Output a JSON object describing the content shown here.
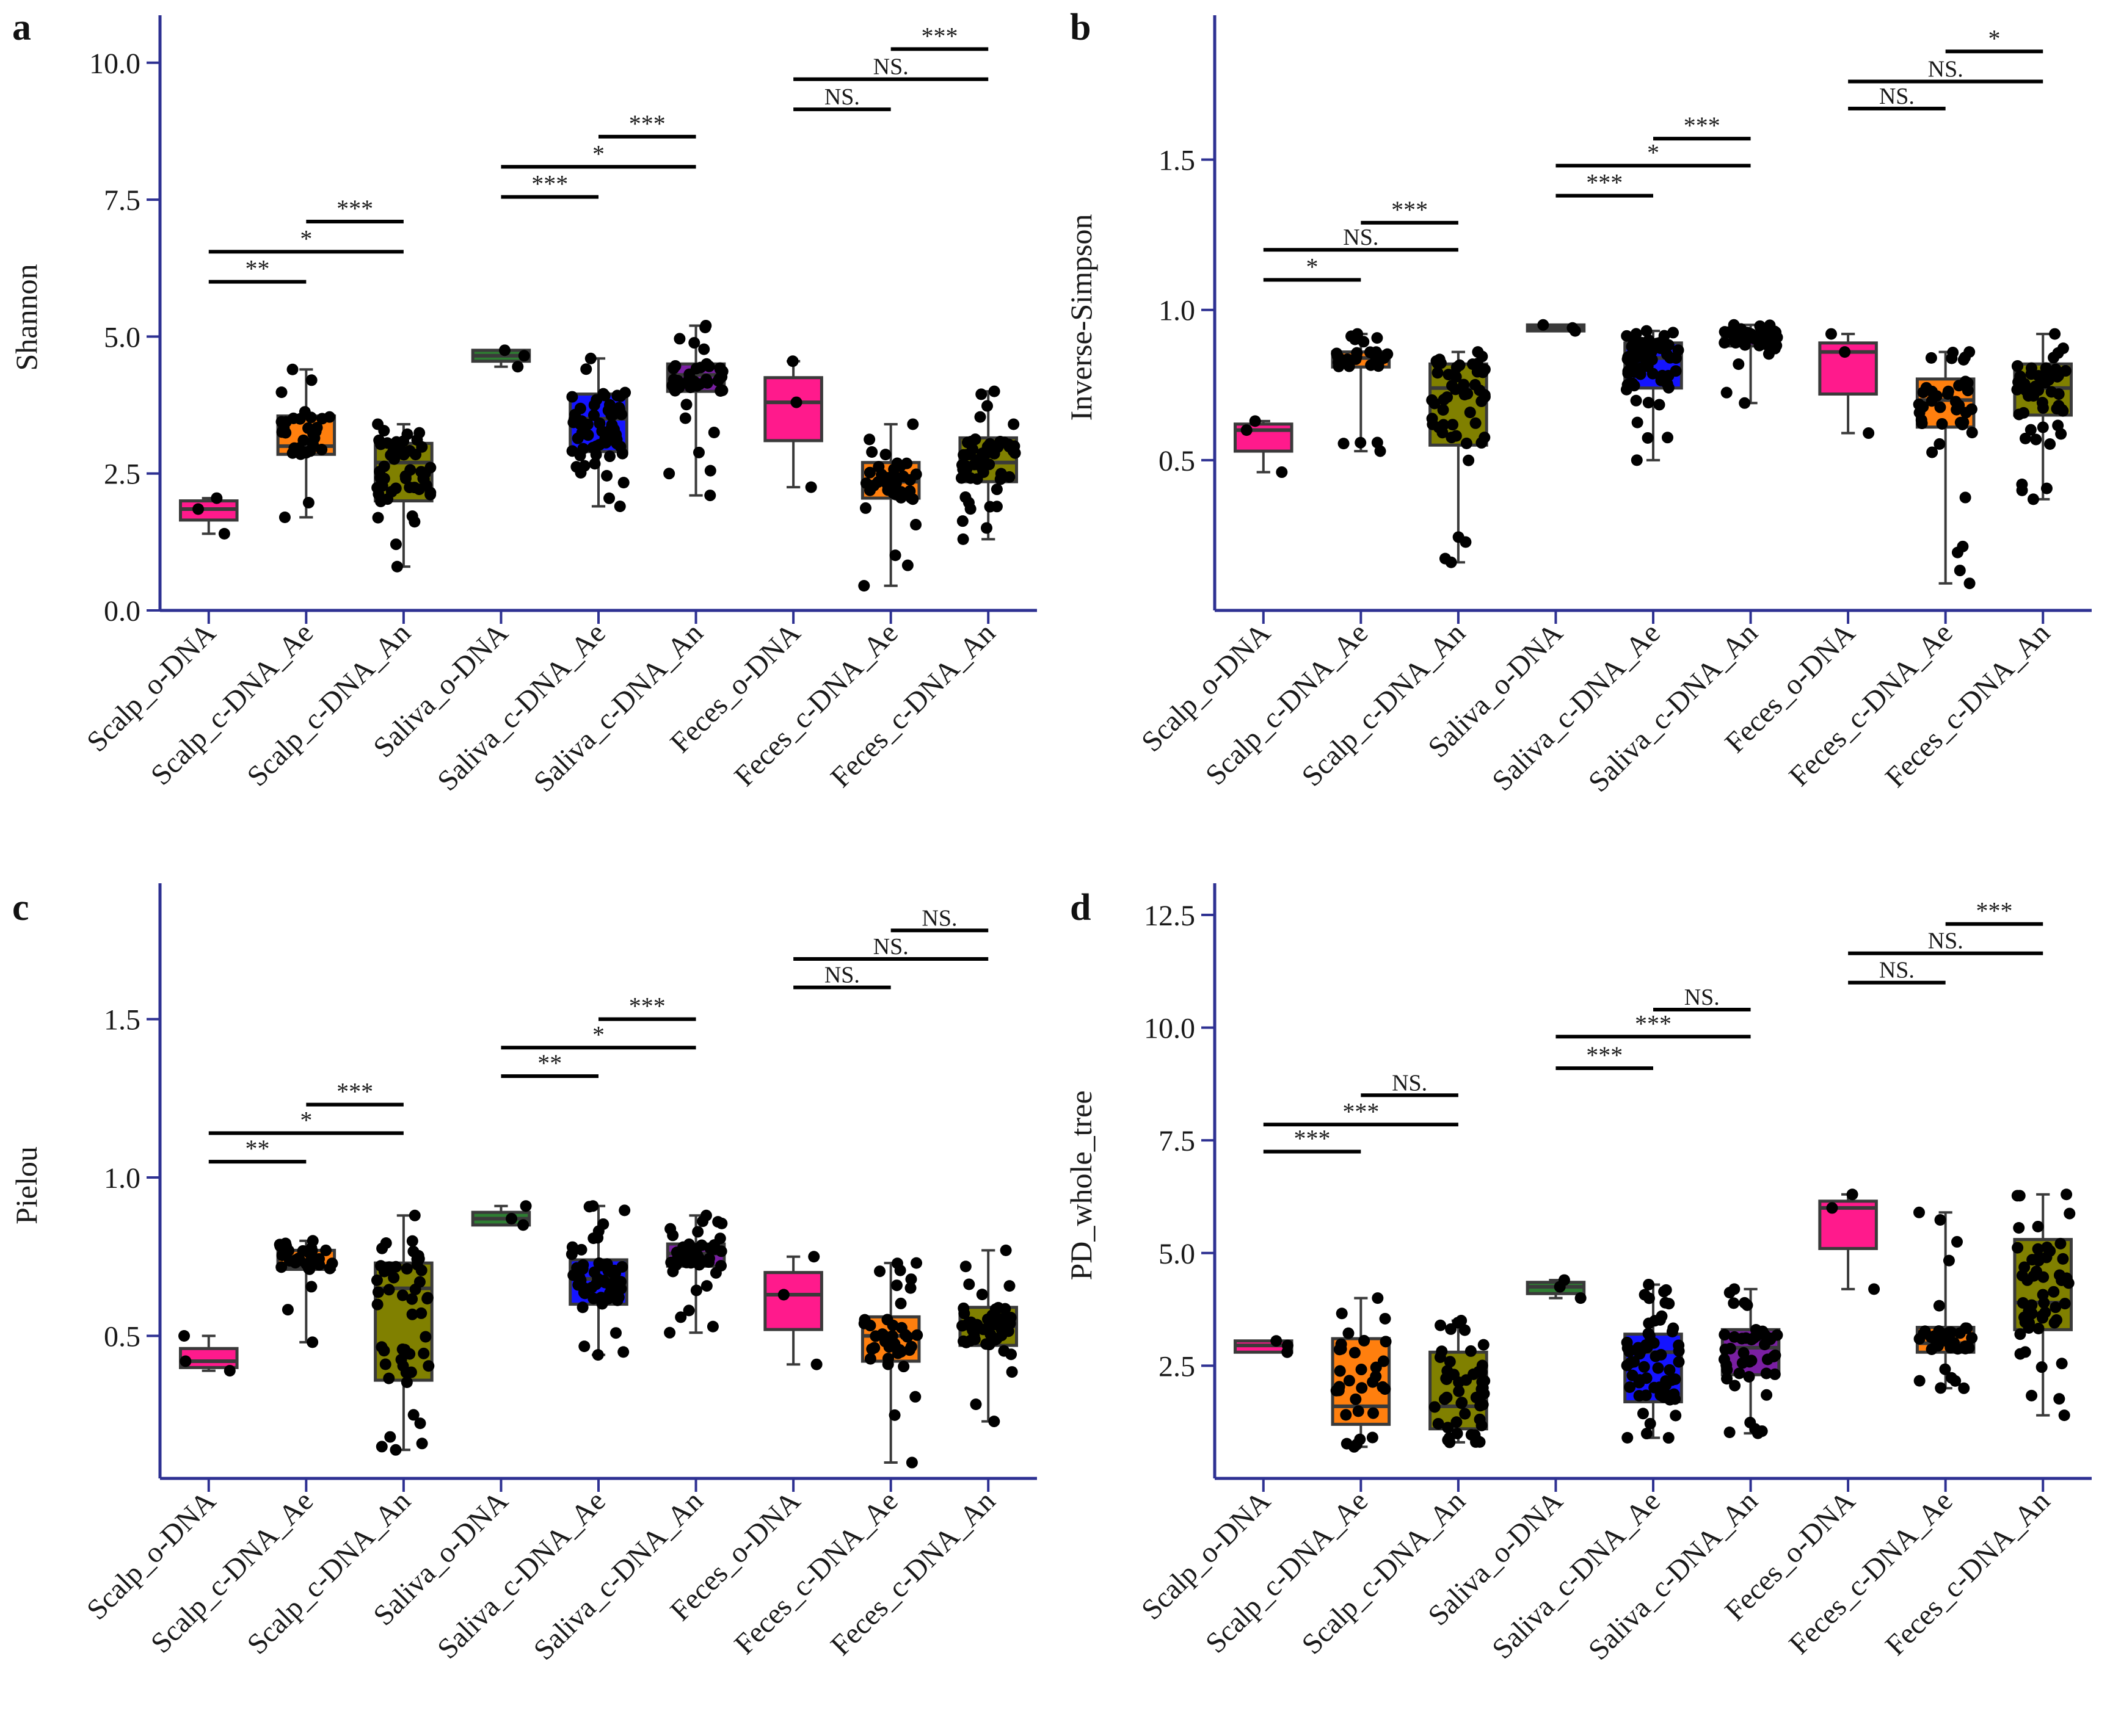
{
  "categories": [
    "Scalp_o-DNA",
    "Scalp_c-DNA_Ae",
    "Scalp_c-DNA_An",
    "Saliva_o-DNA",
    "Saliva_c-DNA_Ae",
    "Saliva_c-DNA_An",
    "Feces_o-DNA",
    "Feces_c-DNA_Ae",
    "Feces_c-DNA_An"
  ],
  "colors": {
    "axis": "#2e3192",
    "text": "#1a1a1a",
    "box_edge": "#3a3a3a",
    "pink": "#ff1a8c",
    "orange": "#ff7f0e",
    "olive": "#808000",
    "green": "#2e7d32",
    "blue": "#1414ff",
    "purple": "#7a1fa2",
    "point": "#000000"
  },
  "chart_data": [
    {
      "panel": "a",
      "type": "box",
      "ylabel": "Shannon",
      "ylim": [
        0,
        10.7
      ],
      "yticks": [
        0.0,
        2.5,
        5.0,
        7.5,
        10.0
      ],
      "tick_labels": [
        "0.0",
        "2.5",
        "5.0",
        "7.5",
        "10.0"
      ],
      "box_colors": [
        "pink",
        "orange",
        "olive",
        "green",
        "blue",
        "purple",
        "pink",
        "orange",
        "olive"
      ],
      "boxes": [
        {
          "min": 1.4,
          "q1": 1.65,
          "median": 1.85,
          "q3": 2.0,
          "max": 2.05,
          "n": 3
        },
        {
          "min": 1.7,
          "q1": 2.85,
          "median": 3.0,
          "q3": 3.55,
          "max": 4.4,
          "n": 32
        },
        {
          "min": 0.8,
          "q1": 2.0,
          "median": 2.7,
          "q3": 3.05,
          "max": 3.4,
          "n": 50
        },
        {
          "min": 4.45,
          "q1": 4.55,
          "median": 4.65,
          "q3": 4.75,
          "max": 4.75,
          "n": 3
        },
        {
          "min": 1.9,
          "q1": 2.9,
          "median": 3.5,
          "q3": 3.95,
          "max": 4.6,
          "n": 60
        },
        {
          "min": 2.1,
          "q1": 4.0,
          "median": 4.3,
          "q3": 4.5,
          "max": 5.2,
          "n": 45
        },
        {
          "min": 2.25,
          "q1": 3.1,
          "median": 3.8,
          "q3": 4.25,
          "max": 4.55,
          "n": 3
        },
        {
          "min": 0.45,
          "q1": 2.05,
          "median": 2.35,
          "q3": 2.7,
          "max": 3.4,
          "n": 40
        },
        {
          "min": 1.3,
          "q1": 2.35,
          "median": 2.7,
          "q3": 3.15,
          "max": 4.0,
          "n": 55
        }
      ],
      "comparisons": [
        {
          "a": 0,
          "b": 1,
          "y": 6.0,
          "label": "**"
        },
        {
          "a": 0,
          "b": 2,
          "y": 6.55,
          "label": "*"
        },
        {
          "a": 1,
          "b": 2,
          "y": 7.1,
          "label": "***"
        },
        {
          "a": 3,
          "b": 4,
          "y": 7.55,
          "label": "***"
        },
        {
          "a": 3,
          "b": 5,
          "y": 8.1,
          "label": "*"
        },
        {
          "a": 4,
          "b": 5,
          "y": 8.65,
          "label": "***"
        },
        {
          "a": 6,
          "b": 7,
          "y": 9.15,
          "label": "NS."
        },
        {
          "a": 6,
          "b": 8,
          "y": 9.7,
          "label": "NS."
        },
        {
          "a": 7,
          "b": 8,
          "y": 10.25,
          "label": "***"
        }
      ]
    },
    {
      "panel": "b",
      "type": "box",
      "ylabel": "Inverse-Simpson",
      "ylim": [
        0,
        1.95
      ],
      "yticks": [
        0.5,
        1.0,
        1.5
      ],
      "tick_labels": [
        "0.5",
        "1.0",
        "1.5"
      ],
      "box_colors": [
        "pink",
        "orange",
        "olive",
        "green",
        "blue",
        "purple",
        "pink",
        "orange",
        "olive"
      ],
      "boxes": [
        {
          "min": 0.46,
          "q1": 0.53,
          "median": 0.6,
          "q3": 0.62,
          "max": 0.63,
          "n": 3
        },
        {
          "min": 0.53,
          "q1": 0.81,
          "median": 0.84,
          "q3": 0.86,
          "max": 0.92,
          "n": 32
        },
        {
          "min": 0.16,
          "q1": 0.55,
          "median": 0.74,
          "q3": 0.82,
          "max": 0.86,
          "n": 50
        },
        {
          "min": 0.93,
          "q1": 0.93,
          "median": 0.94,
          "q3": 0.95,
          "max": 0.95,
          "n": 3
        },
        {
          "min": 0.5,
          "q1": 0.74,
          "median": 0.84,
          "q3": 0.89,
          "max": 0.93,
          "n": 60
        },
        {
          "min": 0.69,
          "q1": 0.88,
          "median": 0.91,
          "q3": 0.93,
          "max": 0.95,
          "n": 45
        },
        {
          "min": 0.59,
          "q1": 0.72,
          "median": 0.86,
          "q3": 0.89,
          "max": 0.92,
          "n": 3
        },
        {
          "min": 0.09,
          "q1": 0.61,
          "median": 0.7,
          "q3": 0.77,
          "max": 0.86,
          "n": 40
        },
        {
          "min": 0.37,
          "q1": 0.65,
          "median": 0.74,
          "q3": 0.82,
          "max": 0.92,
          "n": 55
        }
      ],
      "comparisons": [
        {
          "a": 0,
          "b": 1,
          "y": 1.1,
          "label": "*"
        },
        {
          "a": 0,
          "b": 2,
          "y": 1.2,
          "label": "NS."
        },
        {
          "a": 1,
          "b": 2,
          "y": 1.29,
          "label": "***"
        },
        {
          "a": 3,
          "b": 4,
          "y": 1.38,
          "label": "***"
        },
        {
          "a": 3,
          "b": 5,
          "y": 1.48,
          "label": "*"
        },
        {
          "a": 4,
          "b": 5,
          "y": 1.57,
          "label": "***"
        },
        {
          "a": 6,
          "b": 7,
          "y": 1.67,
          "label": "NS."
        },
        {
          "a": 6,
          "b": 8,
          "y": 1.76,
          "label": "NS."
        },
        {
          "a": 7,
          "b": 8,
          "y": 1.86,
          "label": "*"
        }
      ]
    },
    {
      "panel": "c",
      "type": "box",
      "ylabel": "Pielou",
      "ylim": [
        0.05,
        1.9
      ],
      "yticks": [
        0.5,
        1.0,
        1.5
      ],
      "tick_labels": [
        "0.5",
        "1.0",
        "1.5"
      ],
      "box_colors": [
        "pink",
        "orange",
        "olive",
        "green",
        "blue",
        "purple",
        "pink",
        "orange",
        "olive"
      ],
      "boxes": [
        {
          "min": 0.39,
          "q1": 0.4,
          "median": 0.42,
          "q3": 0.46,
          "max": 0.5,
          "n": 3
        },
        {
          "min": 0.48,
          "q1": 0.71,
          "median": 0.72,
          "q3": 0.77,
          "max": 0.8,
          "n": 32
        },
        {
          "min": 0.14,
          "q1": 0.36,
          "median": 0.65,
          "q3": 0.73,
          "max": 0.88,
          "n": 50
        },
        {
          "min": 0.85,
          "q1": 0.85,
          "median": 0.87,
          "q3": 0.89,
          "max": 0.91,
          "n": 3
        },
        {
          "min": 0.44,
          "q1": 0.6,
          "median": 0.68,
          "q3": 0.74,
          "max": 0.91,
          "n": 60
        },
        {
          "min": 0.51,
          "q1": 0.72,
          "median": 0.76,
          "q3": 0.79,
          "max": 0.88,
          "n": 45
        },
        {
          "min": 0.41,
          "q1": 0.52,
          "median": 0.63,
          "q3": 0.7,
          "max": 0.75,
          "n": 3
        },
        {
          "min": 0.1,
          "q1": 0.42,
          "median": 0.5,
          "q3": 0.56,
          "max": 0.73,
          "n": 40
        },
        {
          "min": 0.23,
          "q1": 0.47,
          "median": 0.53,
          "q3": 0.59,
          "max": 0.77,
          "n": 55
        }
      ],
      "comparisons": [
        {
          "a": 0,
          "b": 1,
          "y": 1.05,
          "label": "**"
        },
        {
          "a": 0,
          "b": 2,
          "y": 1.14,
          "label": "*"
        },
        {
          "a": 1,
          "b": 2,
          "y": 1.23,
          "label": "***"
        },
        {
          "a": 3,
          "b": 4,
          "y": 1.32,
          "label": "**"
        },
        {
          "a": 3,
          "b": 5,
          "y": 1.41,
          "label": "*"
        },
        {
          "a": 4,
          "b": 5,
          "y": 1.5,
          "label": "***"
        },
        {
          "a": 6,
          "b": 7,
          "y": 1.6,
          "label": "NS."
        },
        {
          "a": 6,
          "b": 8,
          "y": 1.69,
          "label": "NS."
        },
        {
          "a": 7,
          "b": 8,
          "y": 1.78,
          "label": "NS."
        }
      ]
    },
    {
      "panel": "d",
      "type": "box",
      "ylabel": "PD_whole_tree",
      "ylim": [
        0.0,
        13.0
      ],
      "yticks": [
        2.5,
        5.0,
        7.5,
        10.0,
        12.5
      ],
      "tick_labels": [
        "2.5",
        "5.0",
        "7.5",
        "10.0",
        "12.5"
      ],
      "box_colors": [
        "pink",
        "orange",
        "olive",
        "green",
        "blue",
        "purple",
        "pink",
        "orange",
        "olive"
      ],
      "boxes": [
        {
          "min": 2.8,
          "q1": 2.8,
          "median": 2.95,
          "q3": 3.05,
          "max": 3.05,
          "n": 3
        },
        {
          "min": 0.7,
          "q1": 1.2,
          "median": 1.6,
          "q3": 3.1,
          "max": 4.0,
          "n": 32
        },
        {
          "min": 0.8,
          "q1": 1.1,
          "median": 1.6,
          "q3": 2.8,
          "max": 3.5,
          "n": 50
        },
        {
          "min": 4.0,
          "q1": 4.1,
          "median": 4.25,
          "q3": 4.35,
          "max": 4.4,
          "n": 3
        },
        {
          "min": 0.9,
          "q1": 1.7,
          "median": 2.8,
          "q3": 3.2,
          "max": 4.3,
          "n": 60
        },
        {
          "min": 1.0,
          "q1": 2.3,
          "median": 2.9,
          "q3": 3.3,
          "max": 4.2,
          "n": 45
        },
        {
          "min": 4.2,
          "q1": 5.1,
          "median": 6.0,
          "q3": 6.15,
          "max": 6.3,
          "n": 3
        },
        {
          "min": 2.0,
          "q1": 2.8,
          "median": 3.0,
          "q3": 3.35,
          "max": 5.9,
          "n": 40
        },
        {
          "min": 1.4,
          "q1": 3.3,
          "median": 3.9,
          "q3": 5.3,
          "max": 6.3,
          "n": 55
        }
      ],
      "comparisons": [
        {
          "a": 0,
          "b": 1,
          "y": 7.25,
          "label": "***"
        },
        {
          "a": 0,
          "b": 2,
          "y": 7.85,
          "label": "***"
        },
        {
          "a": 1,
          "b": 2,
          "y": 8.5,
          "label": "NS."
        },
        {
          "a": 3,
          "b": 4,
          "y": 9.1,
          "label": "***"
        },
        {
          "a": 3,
          "b": 5,
          "y": 9.8,
          "label": "***"
        },
        {
          "a": 4,
          "b": 5,
          "y": 10.4,
          "label": "NS."
        },
        {
          "a": 6,
          "b": 7,
          "y": 11.0,
          "label": "NS."
        },
        {
          "a": 6,
          "b": 8,
          "y": 11.65,
          "label": "NS."
        },
        {
          "a": 7,
          "b": 8,
          "y": 12.3,
          "label": "***"
        }
      ]
    }
  ]
}
